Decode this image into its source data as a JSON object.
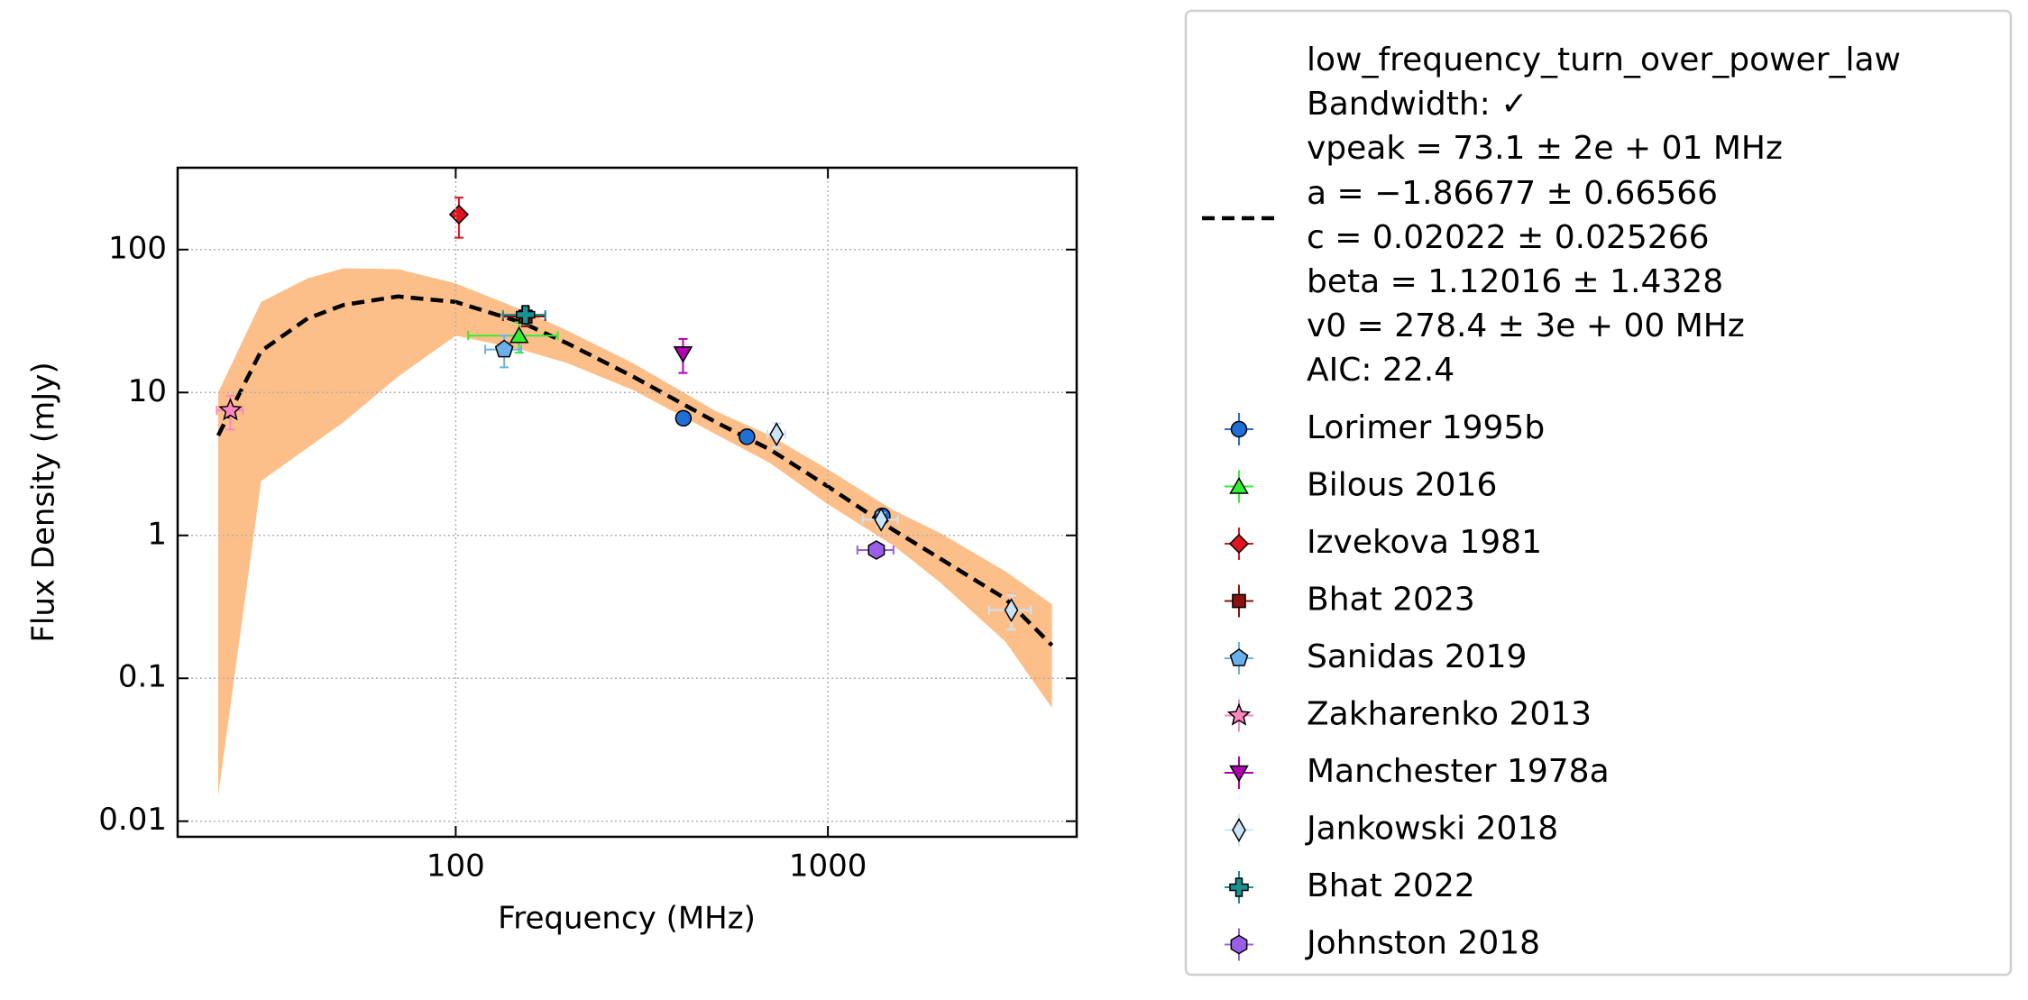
{
  "chart_data": {
    "type": "scatter",
    "xlabel": "Frequency (MHz)",
    "ylabel": "Flux Density (mJy)",
    "xscale": "log",
    "yscale": "log",
    "xlim": [
      17.9,
      4660
    ],
    "ylim": [
      0.00778,
      374
    ],
    "xticks": [
      100,
      1000
    ],
    "yticks": [
      0.01,
      0.1,
      1,
      10,
      100
    ],
    "grid": true,
    "legend": "outside right",
    "fit": {
      "label": [
        "low_frequency_turn_over_power_law",
        "Bandwidth: ✓",
        "vpeak = 73.1 ± 2e + 01 MHz",
        "a = −1.86677 ± 0.66566",
        "c = 0.02022 ± 0.025266",
        "beta = 1.12016 ± 1.4328",
        "v0 = 278.4 ± 3e + 00 MHz",
        "AIC: 22.4"
      ],
      "color": "#000000",
      "band_color": "#fdbf8a",
      "x": [
        23,
        30,
        40,
        50,
        70,
        100,
        150,
        200,
        300,
        500,
        700,
        1000,
        1500,
        2000,
        3000,
        4000
      ],
      "values": [
        5.0,
        19.5,
        33,
        41,
        47,
        43,
        31,
        22,
        12.9,
        6.2,
        3.98,
        2.2,
        1.09,
        0.69,
        0.36,
        0.17
      ],
      "upper": [
        10,
        43,
        63,
        74,
        73,
        58,
        38,
        27,
        16,
        7.4,
        5,
        2.9,
        1.5,
        1.04,
        0.56,
        0.33
      ],
      "lower": [
        0.015,
        2.4,
        4.1,
        6.2,
        12.9,
        25,
        20,
        16,
        10.4,
        5.1,
        3.2,
        1.65,
        0.85,
        0.47,
        0.18,
        0.062
      ]
    },
    "series": [
      {
        "name": "Lorimer 1995b",
        "color": "#1f6fd6",
        "marker": "o",
        "x": [
          409,
          606,
          1400
        ],
        "values": [
          6.6,
          4.9,
          1.37
        ],
        "xerr": [
          0,
          0,
          60
        ],
        "yerr": [
          0.6,
          0.4,
          0.15
        ]
      },
      {
        "name": "Bilous 2016",
        "color": "#33ee33",
        "marker": "^",
        "x": [
          148
        ],
        "values": [
          25
        ],
        "xerr": [
          40
        ],
        "yerr": [
          6
        ]
      },
      {
        "name": "Izvekova 1981",
        "color": "#e0141e",
        "marker": "D",
        "x": [
          102
        ],
        "values": [
          176
        ],
        "xerr": [
          0
        ],
        "yerr": [
          55
        ]
      },
      {
        "name": "Bhat 2023",
        "color": "#8b1010",
        "marker": "s",
        "x": [
          154
        ],
        "values": [
          34
        ],
        "xerr": [
          20
        ],
        "yerr": [
          5
        ]
      },
      {
        "name": "Sanidas 2019",
        "color": "#6ab0ea",
        "marker": "p",
        "x": [
          135
        ],
        "values": [
          20
        ],
        "xerr": [
          15
        ],
        "yerr": [
          5
        ]
      },
      {
        "name": "Zakharenko 2013",
        "color": "#ff88c0",
        "marker": "*",
        "x": [
          24.8
        ],
        "values": [
          7.5
        ],
        "xerr": [
          2
        ],
        "yerr": [
          2
        ]
      },
      {
        "name": "Manchester 1978a",
        "color": "#b000b0",
        "marker": "v",
        "x": [
          408
        ],
        "values": [
          18.7
        ],
        "xerr": [
          0
        ],
        "yerr": [
          5
        ]
      },
      {
        "name": "Jankowski 2018",
        "color": "#c9e4f9",
        "marker": "d",
        "x": [
          728,
          1390,
          3110
        ],
        "values": [
          5.1,
          1.29,
          0.3
        ],
        "xerr": [
          40,
          150,
          400
        ],
        "yerr": [
          1,
          0.15,
          0.08
        ]
      },
      {
        "name": "Bhat 2022",
        "color": "#1a9090",
        "marker": "P",
        "x": [
          154
        ],
        "values": [
          35
        ],
        "xerr": [
          20
        ],
        "yerr": [
          5
        ]
      },
      {
        "name": "Johnston 2018",
        "color": "#9b5ee6",
        "marker": "h",
        "x": [
          1350
        ],
        "values": [
          0.79
        ],
        "xerr": [
          150
        ],
        "yerr": [
          0.08
        ]
      }
    ]
  }
}
